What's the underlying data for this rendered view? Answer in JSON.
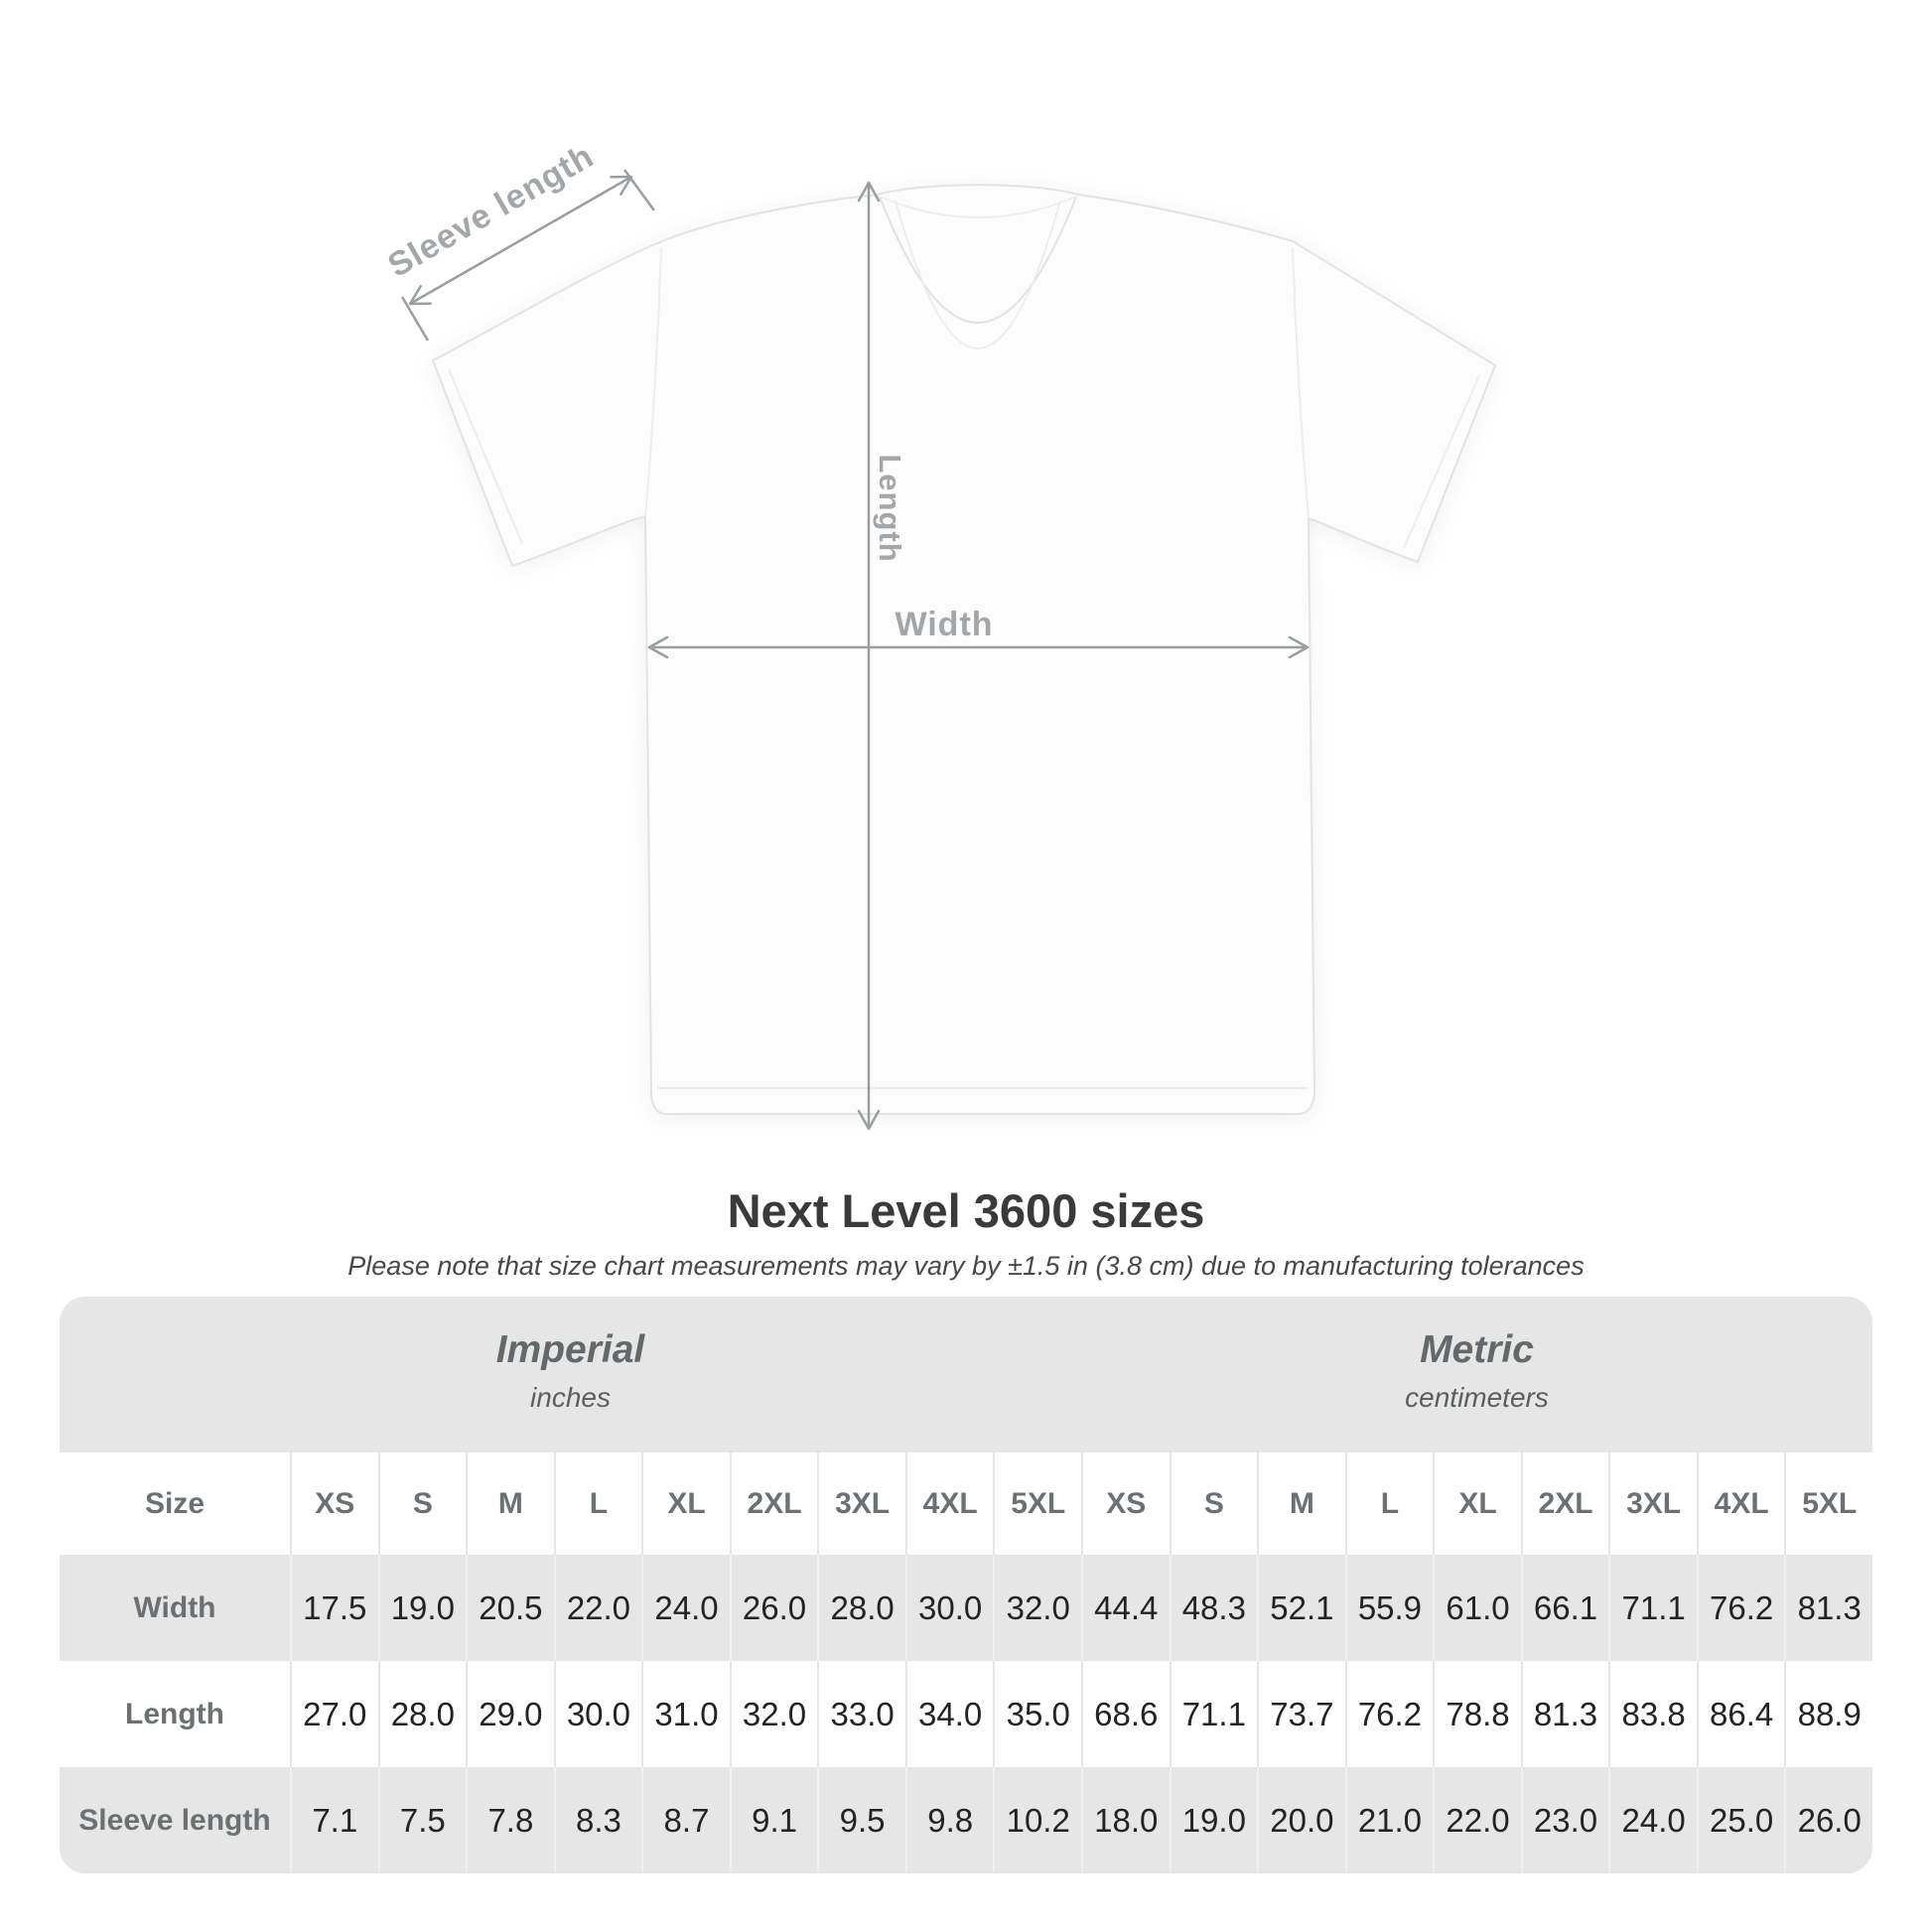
{
  "title": "Next Level 3600 sizes",
  "subtitle": "Please note that size chart measurements may vary by ±1.5 in (3.8 cm) due to manufacturing tolerances",
  "diagram": {
    "labels": {
      "sleeve_length": "Sleeve length",
      "length": "Length",
      "width": "Width"
    },
    "line_color": "#999ea0",
    "label_color": "#a3a7a9"
  },
  "chart_data": {
    "type": "table",
    "title": "Next Level 3600 sizes",
    "note": "Please note that size chart measurements may vary by ±1.5 in (3.8 cm) due to manufacturing tolerances",
    "size_header_label": "Size",
    "sizes": [
      "XS",
      "S",
      "M",
      "L",
      "XL",
      "2XL",
      "3XL",
      "4XL",
      "5XL"
    ],
    "unit_groups": [
      {
        "title": "Imperial",
        "subtitle": "inches"
      },
      {
        "title": "Metric",
        "subtitle": "centimeters"
      }
    ],
    "rows": [
      {
        "label": "Width",
        "imperial": [
          "17.5",
          "19.0",
          "20.5",
          "22.0",
          "24.0",
          "26.0",
          "28.0",
          "30.0",
          "32.0"
        ],
        "metric": [
          "44.4",
          "48.3",
          "52.1",
          "55.9",
          "61.0",
          "66.1",
          "71.1",
          "76.2",
          "81.3"
        ]
      },
      {
        "label": "Length",
        "imperial": [
          "27.0",
          "28.0",
          "29.0",
          "30.0",
          "31.0",
          "32.0",
          "33.0",
          "34.0",
          "35.0"
        ],
        "metric": [
          "68.6",
          "71.1",
          "73.7",
          "76.2",
          "78.8",
          "81.3",
          "83.8",
          "86.4",
          "88.9"
        ]
      },
      {
        "label": "Sleeve length",
        "imperial": [
          "7.1",
          "7.5",
          "7.8",
          "8.3",
          "8.7",
          "9.1",
          "9.5",
          "9.8",
          "10.2"
        ],
        "metric": [
          "18.0",
          "19.0",
          "20.0",
          "21.0",
          "22.0",
          "23.0",
          "24.0",
          "25.0",
          "26.0"
        ]
      }
    ],
    "colors": {
      "table_bg": "#e6e6e6",
      "row_alt": "#ffffff",
      "value_text": "#232323",
      "label_text": "#6b7072"
    }
  }
}
